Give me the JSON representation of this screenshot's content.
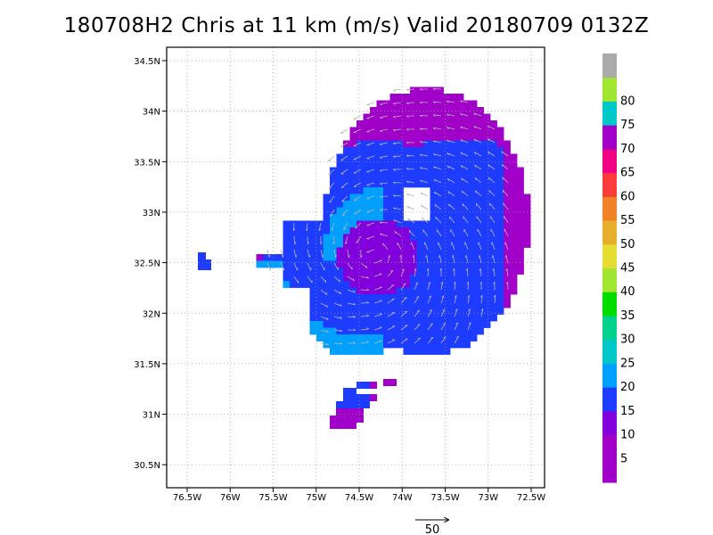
{
  "title": "180708H2 Chris at 11 km (m/s) Valid 20180709 0132Z",
  "map": {
    "lon_range": [
      -76.75,
      -72.25
    ],
    "lat_range": [
      30.25,
      34.6
    ],
    "x_ticks": [
      {
        "value": -76.5,
        "label": "76.5W"
      },
      {
        "value": -76,
        "label": "76W"
      },
      {
        "value": -75.5,
        "label": "75.5W"
      },
      {
        "value": -75,
        "label": "75W"
      },
      {
        "value": -74.5,
        "label": "74.5W"
      },
      {
        "value": -74,
        "label": "74W"
      },
      {
        "value": -73.5,
        "label": "73.5W"
      },
      {
        "value": -73,
        "label": "73W"
      },
      {
        "value": -72.5,
        "label": "72.5W"
      }
    ],
    "y_ticks": [
      {
        "value": 34.5,
        "label": "34.5N"
      },
      {
        "value": 34,
        "label": "34N"
      },
      {
        "value": 33.5,
        "label": "33.5N"
      },
      {
        "value": 33,
        "label": "33N"
      },
      {
        "value": 32.5,
        "label": "32.5N"
      },
      {
        "value": 32,
        "label": "32N"
      },
      {
        "value": 31.5,
        "label": "31.5N"
      },
      {
        "value": 31,
        "label": "31N"
      },
      {
        "value": 30.5,
        "label": "30.5N"
      }
    ],
    "grid": "dotted",
    "field": "wind speed (m/s) with wind vectors"
  },
  "colorbar": {
    "bins": [
      {
        "label": "",
        "color": "#a000c8"
      },
      {
        "label": "5",
        "color": "#a000c8"
      },
      {
        "label": "10",
        "color": "#8200dc"
      },
      {
        "label": "15",
        "color": "#1e3cff"
      },
      {
        "label": "20",
        "color": "#00a0ff"
      },
      {
        "label": "25",
        "color": "#00c8c8"
      },
      {
        "label": "30",
        "color": "#00d28c"
      },
      {
        "label": "35",
        "color": "#00dc00"
      },
      {
        "label": "40",
        "color": "#a0e632"
      },
      {
        "label": "45",
        "color": "#e6dc32"
      },
      {
        "label": "50",
        "color": "#e6af2d"
      },
      {
        "label": "55",
        "color": "#f08228"
      },
      {
        "label": "60",
        "color": "#fa3c3c"
      },
      {
        "label": "65",
        "color": "#f00082"
      },
      {
        "label": "70",
        "color": "#a000c8"
      },
      {
        "label": "75",
        "color": "#00c8c8"
      },
      {
        "label": "80",
        "color": "#a0e632"
      },
      {
        "label": "",
        "color": "#aaaaaa"
      }
    ]
  },
  "vector_legend": {
    "label": "50"
  }
}
